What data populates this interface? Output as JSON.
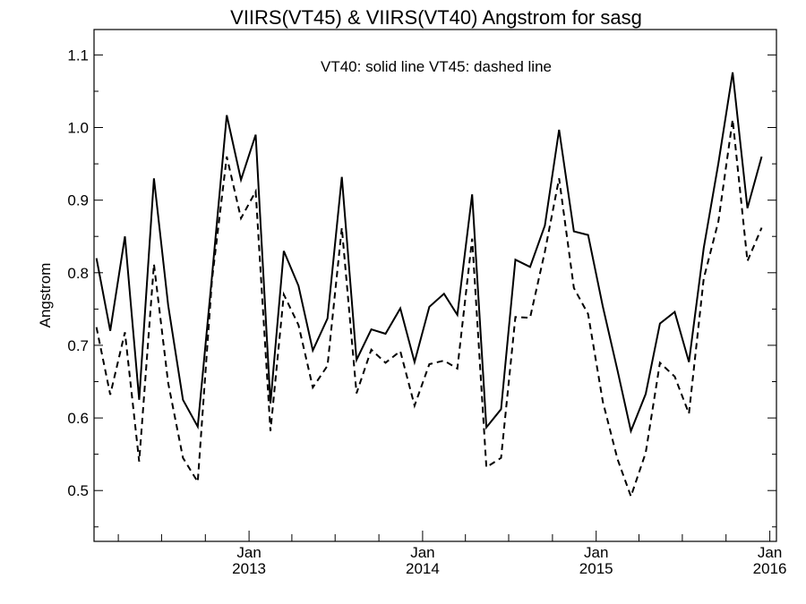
{
  "chart_data": {
    "type": "line",
    "title": "VIIRS(VT45) & VIIRS(VT40)  Angstrom for sasg",
    "annotation": "VT40: solid line   VT45: dashed line",
    "ylabel": "Angstrom",
    "xlabel": "",
    "ylim": [
      0.43,
      1.135
    ],
    "xlim": [
      "2012-02-10",
      "2016-01-15"
    ],
    "grid": false,
    "legend": "none",
    "y_ticks": [
      "0.5",
      "0.6",
      "0.7",
      "0.8",
      "0.9",
      "1.0",
      "1.1"
    ],
    "x_ticks": [
      {
        "date": "2013-01-01",
        "month": "Jan",
        "year": "2013"
      },
      {
        "date": "2014-01-01",
        "month": "Jan",
        "year": "2014"
      },
      {
        "date": "2015-01-01",
        "month": "Jan",
        "year": "2015"
      },
      {
        "date": "2016-01-01",
        "month": "Jan",
        "year": "2016"
      }
    ],
    "x": [
      "2012-02-15",
      "2012-03-15",
      "2012-04-15",
      "2012-05-15",
      "2012-06-15",
      "2012-07-15",
      "2012-08-15",
      "2012-09-15",
      "2012-10-15",
      "2012-11-15",
      "2012-12-15",
      "2013-01-15",
      "2013-02-15",
      "2013-03-15",
      "2013-04-15",
      "2013-05-15",
      "2013-06-15",
      "2013-07-15",
      "2013-08-15",
      "2013-09-15",
      "2013-10-15",
      "2013-11-15",
      "2013-12-15",
      "2014-01-15",
      "2014-02-15",
      "2014-03-15",
      "2014-04-15",
      "2014-05-15",
      "2014-06-15",
      "2014-07-15",
      "2014-08-15",
      "2014-09-15",
      "2014-10-15",
      "2014-11-15",
      "2014-12-15",
      "2015-01-15",
      "2015-02-15",
      "2015-03-15",
      "2015-04-15",
      "2015-05-15",
      "2015-06-15",
      "2015-07-15",
      "2015-08-15",
      "2015-09-15",
      "2015-10-15",
      "2015-11-15",
      "2015-12-15"
    ],
    "series": [
      {
        "values": [
          0.82,
          0.72,
          0.85,
          0.625,
          0.93,
          0.755,
          0.625,
          0.588,
          0.795,
          1.017,
          0.928,
          0.99,
          0.62,
          0.83,
          0.782,
          0.693,
          0.737,
          0.932,
          0.68,
          0.722,
          0.716,
          0.751,
          0.677,
          0.753,
          0.771,
          0.742,
          0.908,
          0.587,
          0.612,
          0.818,
          0.808,
          0.865,
          0.997,
          0.857,
          0.852,
          0.753,
          0.665,
          0.582,
          0.633,
          0.73,
          0.746,
          0.677,
          0.834,
          0.951,
          1.076,
          0.889,
          0.96
        ],
        "style": "solid",
        "color": "#000000"
      },
      {
        "values": [
          0.725,
          0.632,
          0.718,
          0.54,
          0.812,
          0.648,
          0.545,
          0.512,
          0.79,
          0.96,
          0.875,
          0.912,
          0.582,
          0.77,
          0.728,
          0.642,
          0.672,
          0.862,
          0.634,
          0.694,
          0.676,
          0.692,
          0.617,
          0.674,
          0.679,
          0.668,
          0.847,
          0.532,
          0.545,
          0.739,
          0.738,
          0.829,
          0.93,
          0.779,
          0.743,
          0.622,
          0.543,
          0.492,
          0.552,
          0.676,
          0.657,
          0.606,
          0.792,
          0.871,
          1.011,
          0.816,
          0.862
        ],
        "style": "dashed",
        "color": "#000000"
      }
    ]
  }
}
